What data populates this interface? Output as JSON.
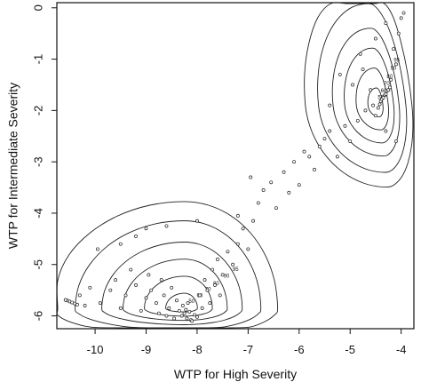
{
  "chart_data": {
    "type": "scatter",
    "title": "",
    "xlabel": "WTP for High Severity",
    "ylabel": "WTP for Intermediate Severity",
    "xlim": [
      -10.75,
      -3.75
    ],
    "ylim": [
      -6.25,
      0.1
    ],
    "xticks": [
      -10,
      -9,
      -8,
      -7,
      -6,
      -5,
      -4
    ],
    "yticks": [
      0,
      -1,
      -2,
      -3,
      -4,
      -5,
      -6
    ],
    "grid": false,
    "legend": "none",
    "contour_levels": [
      "95",
      "90",
      "80",
      "70",
      "60",
      "50"
    ],
    "contour_centers": [
      {
        "x": -8.25,
        "y": -5.85
      },
      {
        "x": -4.45,
        "y": -1.9
      }
    ],
    "series": [
      {
        "values": [
          [
            -10.5,
            -5.72
          ],
          [
            -10.55,
            -5.7
          ],
          [
            -10.58,
            -5.69
          ],
          [
            -10.45,
            -5.74
          ],
          [
            -10.4,
            -5.76
          ],
          [
            -10.35,
            -5.78
          ],
          [
            -10.2,
            -5.8
          ],
          [
            -10.3,
            -5.6
          ],
          [
            -10.1,
            -5.45
          ],
          [
            -9.9,
            -5.75
          ],
          [
            -9.7,
            -5.5
          ],
          [
            -9.6,
            -5.3
          ],
          [
            -9.5,
            -5.85
          ],
          [
            -9.4,
            -5.6
          ],
          [
            -9.3,
            -5.1
          ],
          [
            -9.2,
            -5.4
          ],
          [
            -9.1,
            -5.9
          ],
          [
            -9.0,
            -5.65
          ],
          [
            -8.95,
            -5.2
          ],
          [
            -8.9,
            -5.5
          ],
          [
            -8.8,
            -5.75
          ],
          [
            -8.75,
            -5.95
          ],
          [
            -8.7,
            -5.3
          ],
          [
            -8.65,
            -5.6
          ],
          [
            -8.6,
            -6.0
          ],
          [
            -8.55,
            -5.85
          ],
          [
            -8.5,
            -5.45
          ],
          [
            -8.45,
            -6.05
          ],
          [
            -8.4,
            -5.7
          ],
          [
            -8.35,
            -5.9
          ],
          [
            -8.3,
            -6.0
          ],
          [
            -8.28,
            -5.8
          ],
          [
            -8.25,
            -5.95
          ],
          [
            -8.22,
            -5.88
          ],
          [
            -8.2,
            -6.05
          ],
          [
            -8.18,
            -5.75
          ],
          [
            -8.15,
            -5.92
          ],
          [
            -8.12,
            -6.08
          ],
          [
            -8.1,
            -6.1
          ],
          [
            -8.05,
            -5.98
          ],
          [
            -8.0,
            -6.02
          ],
          [
            -7.95,
            -5.6
          ],
          [
            -7.9,
            -5.85
          ],
          [
            -7.85,
            -5.3
          ],
          [
            -7.8,
            -5.5
          ],
          [
            -7.75,
            -5.75
          ],
          [
            -7.7,
            -5.1
          ],
          [
            -7.65,
            -5.4
          ],
          [
            -7.6,
            -4.9
          ],
          [
            -7.55,
            -5.6
          ],
          [
            -7.5,
            -5.2
          ],
          [
            -7.4,
            -4.75
          ],
          [
            -7.3,
            -5.0
          ],
          [
            -7.2,
            -4.6
          ],
          [
            -7.1,
            -4.3
          ],
          [
            -7.0,
            -4.7
          ],
          [
            -8.6,
            -4.25
          ],
          [
            -8.0,
            -4.15
          ],
          [
            -7.2,
            -4.05
          ],
          [
            -9.0,
            -4.3
          ],
          [
            -9.5,
            -4.6
          ],
          [
            -9.95,
            -4.7
          ],
          [
            -9.2,
            -4.45
          ],
          [
            -6.95,
            -3.3
          ],
          [
            -6.9,
            -4.15
          ],
          [
            -6.8,
            -3.8
          ],
          [
            -6.7,
            -3.55
          ],
          [
            -6.55,
            -3.4
          ],
          [
            -6.45,
            -3.9
          ],
          [
            -6.3,
            -3.2
          ],
          [
            -6.2,
            -3.6
          ],
          [
            -6.1,
            -3.0
          ],
          [
            -6.0,
            -3.45
          ],
          [
            -5.9,
            -2.8
          ],
          [
            -5.8,
            -2.9
          ],
          [
            -5.7,
            -3.15
          ],
          [
            -5.6,
            -2.7
          ],
          [
            -5.5,
            -2.55
          ],
          [
            -5.4,
            -2.4
          ],
          [
            -5.25,
            -2.9
          ],
          [
            -5.1,
            -2.3
          ],
          [
            -5.0,
            -2.6
          ],
          [
            -4.95,
            -1.5
          ],
          [
            -4.85,
            -2.2
          ],
          [
            -4.75,
            -1.2
          ],
          [
            -4.7,
            -2.0
          ],
          [
            -4.6,
            -1.6
          ],
          [
            -4.55,
            -1.9
          ],
          [
            -4.5,
            -2.1
          ],
          [
            -4.45,
            -1.95
          ],
          [
            -4.42,
            -1.88
          ],
          [
            -4.4,
            -1.82
          ],
          [
            -4.38,
            -1.78
          ],
          [
            -4.35,
            -1.75
          ],
          [
            -4.32,
            -1.7
          ],
          [
            -4.3,
            -1.68
          ],
          [
            -4.28,
            -1.62
          ],
          [
            -4.25,
            -1.6
          ],
          [
            -4.22,
            -1.55
          ],
          [
            -4.2,
            -1.4
          ],
          [
            -4.15,
            -0.8
          ],
          [
            -4.1,
            -1.1
          ],
          [
            -4.05,
            -0.5
          ],
          [
            -4.0,
            -0.2
          ],
          [
            -3.95,
            -0.1
          ],
          [
            -4.3,
            -0.3
          ],
          [
            -4.5,
            -0.6
          ],
          [
            -4.8,
            -0.9
          ],
          [
            -5.2,
            -1.3
          ],
          [
            -5.4,
            -1.9
          ],
          [
            -4.3,
            -2.4
          ],
          [
            -4.1,
            -2.6
          ]
        ]
      }
    ]
  }
}
